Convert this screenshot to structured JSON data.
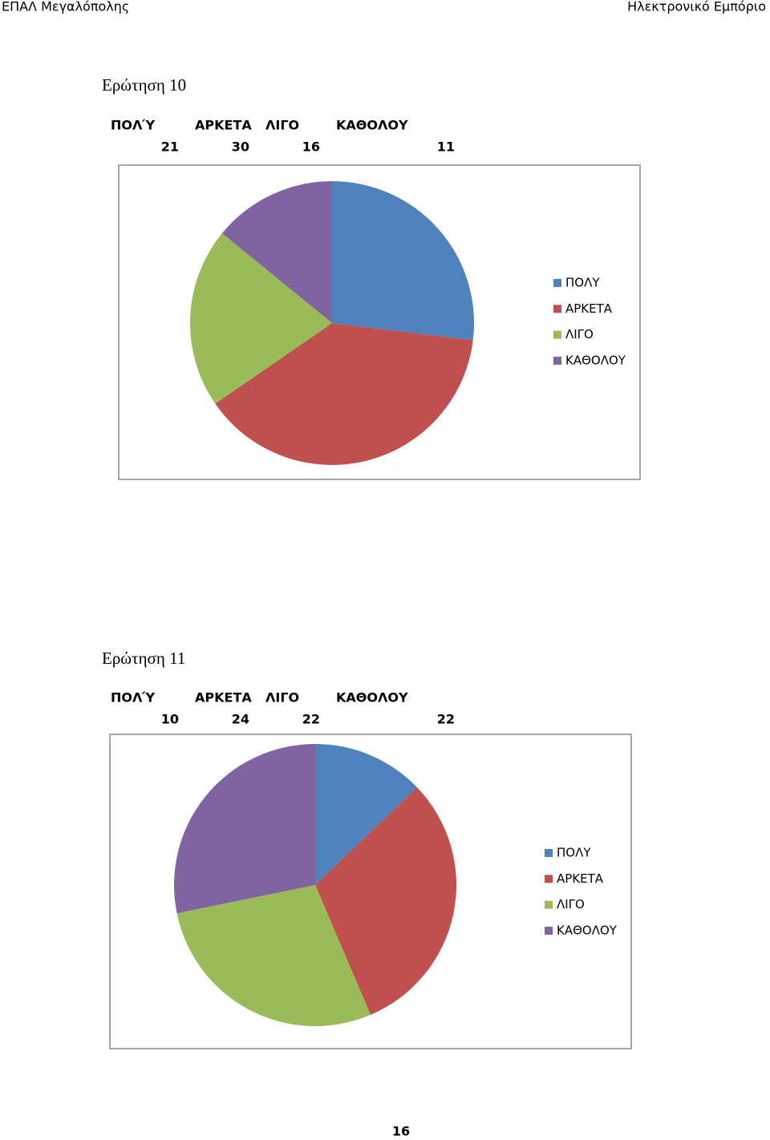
{
  "header": {
    "left": "ΕΠΑΛ Μεγαλόπολης",
    "right": "Ηλεκτρονικό Εμπόριο"
  },
  "sections": [
    {
      "title": "Ερώτηση 10",
      "table": {
        "headers": [
          "ΠΟΛΎ",
          "ΑΡΚΕΤΑ",
          "ΛΙΓΟ",
          "ΚΑΘΟΛΟΥ"
        ],
        "values": [
          21,
          30,
          16,
          11
        ]
      },
      "chart": {
        "type": "pie",
        "legend": [
          "ΠΟΛΥ",
          "ΑΡΚΕΤΑ",
          "ΛΙΓΟ",
          "ΚΑΘΟΛΟΥ"
        ],
        "colors": [
          "#4f81bd",
          "#c0504d",
          "#9bbb59",
          "#8064a2"
        ]
      }
    },
    {
      "title": "Ερώτηση 11",
      "table": {
        "headers": [
          "ΠΟΛΎ",
          "ΑΡΚΕΤΑ",
          "ΛΙΓΟ",
          "ΚΑΘΟΛΟΥ"
        ],
        "values": [
          10,
          24,
          22,
          22
        ]
      },
      "chart": {
        "type": "pie",
        "legend": [
          "ΠΟΛΥ",
          "ΑΡΚΕΤΑ",
          "ΛΙΓΟ",
          "ΚΑΘΟΛΟΥ"
        ],
        "colors": [
          "#4f81bd",
          "#c0504d",
          "#9bbb59",
          "#8064a2"
        ]
      }
    }
  ],
  "page_number": "16"
}
